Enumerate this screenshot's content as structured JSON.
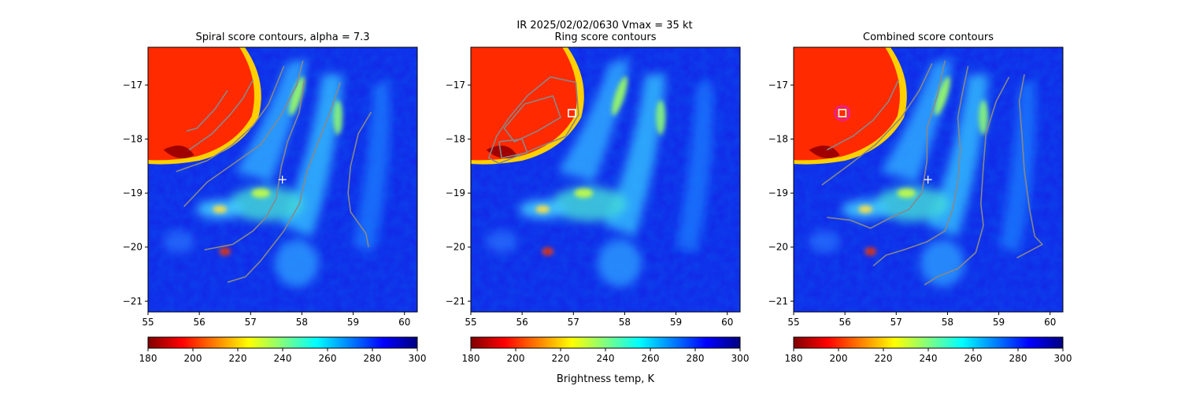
{
  "figure": {
    "suptitle_line1": "IR  2025/02/02/0630    Vmax = 35 kt",
    "colorbar_label": "Brightness temp, K"
  },
  "chart_data": [
    {
      "type": "heatmap",
      "title": "Spiral score contours, alpha =  7.3",
      "xlim": [
        55,
        60.25
      ],
      "ylim": [
        -21.2,
        -16.3
      ],
      "xticks": [
        55,
        56,
        57,
        58,
        59,
        60
      ],
      "yticks": [
        -17,
        -18,
        -19,
        -20,
        -21
      ],
      "xlabel": "",
      "ylabel": "",
      "colorbar": {
        "min": 180,
        "max": 300,
        "ticks": [
          180,
          200,
          220,
          240,
          260,
          280,
          300
        ],
        "cmap": "jet_r"
      },
      "markers": [
        {
          "kind": "plus",
          "x": 57.62,
          "y": -18.75,
          "color": "#ffffff"
        }
      ],
      "contours": [
        [
          [
            57.65,
            -16.65
          ],
          [
            57.5,
            -17.0
          ],
          [
            57.35,
            -17.35
          ],
          [
            57.05,
            -17.75
          ],
          [
            56.65,
            -18.1
          ],
          [
            56.15,
            -18.4
          ],
          [
            55.55,
            -18.6
          ]
        ],
        [
          [
            57.05,
            -16.9
          ],
          [
            56.85,
            -17.25
          ],
          [
            56.6,
            -17.55
          ],
          [
            56.25,
            -17.9
          ],
          [
            55.8,
            -18.2
          ]
        ],
        [
          [
            56.55,
            -17.1
          ],
          [
            56.3,
            -17.45
          ],
          [
            55.95,
            -17.8
          ],
          [
            55.75,
            -17.85
          ]
        ],
        [
          [
            58.02,
            -16.55
          ],
          [
            57.9,
            -17.0
          ],
          [
            57.6,
            -17.55
          ],
          [
            57.2,
            -18.1
          ],
          [
            56.6,
            -18.5
          ],
          [
            56.15,
            -18.8
          ],
          [
            55.7,
            -19.25
          ]
        ],
        [
          [
            58.05,
            -16.9
          ],
          [
            57.95,
            -17.5
          ],
          [
            57.72,
            -18.05
          ],
          [
            57.6,
            -18.5
          ],
          [
            57.5,
            -19.1
          ],
          [
            57.3,
            -19.45
          ],
          [
            57.05,
            -19.7
          ],
          [
            56.65,
            -19.95
          ],
          [
            56.1,
            -20.05
          ]
        ],
        [
          [
            58.75,
            -16.95
          ],
          [
            58.55,
            -17.5
          ],
          [
            58.3,
            -18.1
          ],
          [
            58.1,
            -18.6
          ],
          [
            57.95,
            -19.2
          ],
          [
            57.65,
            -19.7
          ],
          [
            57.2,
            -20.25
          ],
          [
            56.9,
            -20.55
          ],
          [
            56.55,
            -20.65
          ]
        ],
        [
          [
            59.35,
            -17.5
          ],
          [
            59.1,
            -17.9
          ],
          [
            58.95,
            -18.5
          ],
          [
            58.9,
            -19.0
          ],
          [
            58.95,
            -19.35
          ],
          [
            59.25,
            -19.75
          ],
          [
            59.3,
            -20.0
          ]
        ]
      ]
    },
    {
      "type": "heatmap",
      "title": "Ring score contours",
      "xlim": [
        55,
        60.25
      ],
      "ylim": [
        -21.2,
        -16.3
      ],
      "xticks": [
        55,
        56,
        57,
        58,
        59,
        60
      ],
      "yticks": [
        -17,
        -18,
        -19,
        -20,
        -21
      ],
      "xlabel": "",
      "ylabel": "",
      "colorbar": {
        "min": 180,
        "max": 300,
        "ticks": [
          180,
          200,
          220,
          240,
          260,
          280,
          300
        ],
        "cmap": "jet_r"
      },
      "markers": [
        {
          "kind": "square",
          "x": 56.97,
          "y": -17.52,
          "color": "#ffffff"
        }
      ],
      "contours": [
        [
          [
            56.55,
            -16.85
          ],
          [
            57.05,
            -16.95
          ],
          [
            57.1,
            -17.55
          ],
          [
            56.85,
            -17.95
          ],
          [
            56.45,
            -18.1
          ],
          [
            55.95,
            -18.3
          ],
          [
            55.55,
            -18.45
          ],
          [
            55.35,
            -18.35
          ],
          [
            55.5,
            -17.95
          ],
          [
            55.75,
            -17.6
          ],
          [
            56.1,
            -17.2
          ],
          [
            56.55,
            -16.85
          ]
        ],
        [
          [
            56.05,
            -17.35
          ],
          [
            56.6,
            -17.2
          ],
          [
            56.75,
            -17.6
          ],
          [
            56.3,
            -17.85
          ],
          [
            55.85,
            -18.05
          ],
          [
            55.65,
            -17.8
          ],
          [
            56.05,
            -17.35
          ]
        ],
        [
          [
            55.55,
            -18.05
          ],
          [
            56.0,
            -18.0
          ],
          [
            56.1,
            -18.25
          ],
          [
            55.6,
            -18.35
          ],
          [
            55.55,
            -18.05
          ]
        ]
      ]
    },
    {
      "type": "heatmap",
      "title": "Combined score contours",
      "xlim": [
        55,
        60.25
      ],
      "ylim": [
        -21.2,
        -16.3
      ],
      "xticks": [
        55,
        56,
        57,
        58,
        59,
        60
      ],
      "yticks": [
        -17,
        -18,
        -19,
        -20,
        -21
      ],
      "xlabel": "",
      "ylabel": "",
      "colorbar": {
        "min": 180,
        "max": 300,
        "ticks": [
          180,
          200,
          220,
          240,
          260,
          280,
          300
        ],
        "cmap": "jet_r"
      },
      "markers": [
        {
          "kind": "square",
          "x": 55.95,
          "y": -17.52,
          "color": "#ffffff"
        },
        {
          "kind": "circle",
          "x": 55.95,
          "y": -17.52,
          "color": "#e01ad0"
        },
        {
          "kind": "plus",
          "x": 57.62,
          "y": -18.75,
          "color": "#ffffff"
        }
      ],
      "contours": [
        [
          [
            57.05,
            -16.9
          ],
          [
            56.85,
            -17.3
          ],
          [
            56.55,
            -17.65
          ],
          [
            56.15,
            -17.95
          ],
          [
            55.65,
            -18.2
          ]
        ],
        [
          [
            57.7,
            -16.6
          ],
          [
            57.45,
            -17.1
          ],
          [
            57.1,
            -17.6
          ],
          [
            56.6,
            -18.1
          ],
          [
            56.05,
            -18.5
          ],
          [
            55.55,
            -18.85
          ]
        ],
        [
          [
            57.95,
            -16.55
          ],
          [
            57.8,
            -17.2
          ],
          [
            57.6,
            -17.8
          ],
          [
            57.6,
            -18.4
          ],
          [
            57.5,
            -19.0
          ],
          [
            57.25,
            -19.3
          ],
          [
            56.9,
            -19.45
          ],
          [
            56.5,
            -19.65
          ],
          [
            56.1,
            -19.5
          ],
          [
            55.65,
            -19.45
          ]
        ],
        [
          [
            58.4,
            -16.65
          ],
          [
            58.3,
            -17.1
          ],
          [
            58.2,
            -17.6
          ],
          [
            58.25,
            -18.2
          ],
          [
            58.2,
            -18.8
          ],
          [
            58.1,
            -19.3
          ],
          [
            57.95,
            -19.7
          ],
          [
            57.6,
            -19.9
          ],
          [
            57.15,
            -20.05
          ],
          [
            56.8,
            -20.15
          ],
          [
            56.55,
            -20.35
          ]
        ],
        [
          [
            59.2,
            -16.85
          ],
          [
            58.95,
            -17.3
          ],
          [
            58.75,
            -17.9
          ],
          [
            58.7,
            -18.5
          ],
          [
            58.65,
            -19.2
          ],
          [
            58.7,
            -19.6
          ],
          [
            58.55,
            -20.1
          ],
          [
            58.2,
            -20.4
          ],
          [
            57.8,
            -20.55
          ],
          [
            57.55,
            -20.7
          ]
        ],
        [
          [
            59.5,
            -16.8
          ],
          [
            59.4,
            -17.3
          ],
          [
            59.45,
            -17.9
          ],
          [
            59.5,
            -18.6
          ],
          [
            59.6,
            -19.3
          ],
          [
            59.7,
            -19.8
          ],
          [
            59.85,
            -19.95
          ],
          [
            59.55,
            -20.1
          ],
          [
            59.35,
            -20.2
          ]
        ]
      ]
    }
  ]
}
